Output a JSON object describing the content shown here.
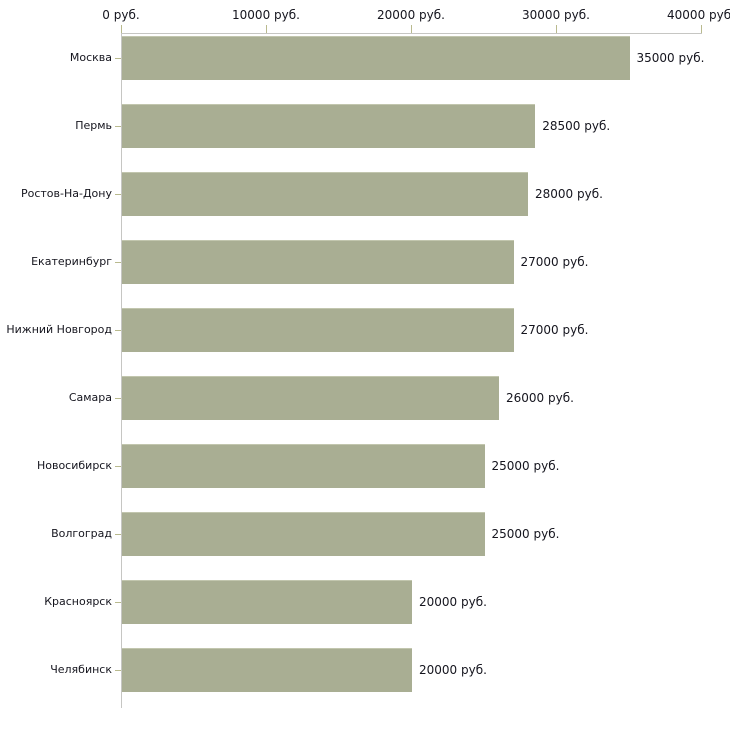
{
  "chart_data": {
    "type": "bar",
    "orientation": "horizontal",
    "title": "",
    "xlabel": "",
    "ylabel": "",
    "unit": "руб.",
    "xlim": [
      0,
      40000
    ],
    "grid": false,
    "legend": null,
    "axis_position": "top",
    "categories": [
      "Москва",
      "Пермь",
      "Ростов-На-Дону",
      "Екатеринбург",
      "Нижний Новгород",
      "Самара",
      "Новосибирск",
      "Волгоград",
      "Красноярск",
      "Челябинск"
    ],
    "values": [
      35000,
      28500,
      28000,
      27000,
      27000,
      26000,
      25000,
      25000,
      20000,
      20000
    ],
    "value_labels": [
      "35000 руб.",
      "28500 руб.",
      "28000 руб.",
      "27000 руб.",
      "27000 руб.",
      "26000 руб.",
      "25000 руб.",
      "25000 руб.",
      "20000 руб.",
      "20000 руб."
    ],
    "x_axis_ticks": [
      {
        "value": 0,
        "label": "0 руб."
      },
      {
        "value": 10000,
        "label": "10000 руб."
      },
      {
        "value": 20000,
        "label": "20000 руб."
      },
      {
        "value": 30000,
        "label": "30000 руб."
      },
      {
        "value": 40000,
        "label": "40000 руб."
      }
    ],
    "colors": {
      "bar": "#a9ae93",
      "bar_border": "#c2c6ae",
      "axis_line": "#c6c6c3",
      "tick": "#b9ba8e",
      "text": "#15151e",
      "background": "#ffffff"
    }
  }
}
